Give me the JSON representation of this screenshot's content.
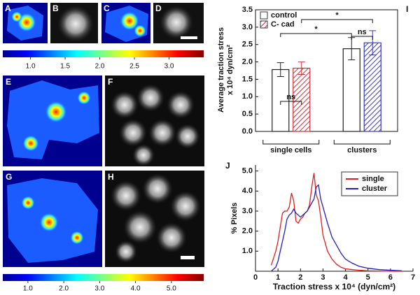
{
  "image_panels": {
    "labels": [
      "A",
      "B",
      "C",
      "D",
      "E",
      "F",
      "G",
      "H"
    ]
  },
  "colorbars": [
    {
      "lim": [
        0.6,
        3.5
      ],
      "ticks": [
        {
          "value": 1,
          "label": "1.0"
        },
        {
          "value": 1.5,
          "label": "1.5"
        },
        {
          "value": 2,
          "label": "2.0"
        },
        {
          "value": 2.5,
          "label": "2.5"
        },
        {
          "value": 3,
          "label": "3.0"
        }
      ]
    },
    {
      "lim": [
        0.3,
        5.9
      ],
      "ticks": [
        {
          "value": 1,
          "label": "1.0"
        },
        {
          "value": 2,
          "label": "2.0"
        },
        {
          "value": 3,
          "label": "3.0"
        },
        {
          "value": 4,
          "label": "4.0"
        },
        {
          "value": 5,
          "label": "5.0"
        }
      ]
    }
  ],
  "chart_data": [
    {
      "type": "bar",
      "panel_label": "I",
      "ylabel": [
        "Average traction stress",
        "x 10⁴ dyn/cm²"
      ],
      "categories": [
        "single cells",
        "clusters"
      ],
      "series": [
        {
          "name": "control",
          "colors": [
            "#222222",
            "#222222"
          ],
          "hatch": false,
          "values": [
            1.78,
            2.38
          ],
          "errors": [
            0.2,
            0.32
          ]
        },
        {
          "name": "C- cad",
          "colors": [
            "#d0303a",
            "#3a3ab8"
          ],
          "hatch": true,
          "values": [
            1.82,
            2.55
          ],
          "errors": [
            0.18,
            0.35
          ]
        }
      ],
      "annotations": [
        "ns",
        "ns",
        "*",
        "*"
      ],
      "ylim": [
        0,
        3.5
      ],
      "yticks": [
        {
          "value": 0,
          "label": "0.0"
        },
        {
          "value": 0.5,
          "label": "0.5"
        },
        {
          "value": 1,
          "label": "1.0"
        },
        {
          "value": 1.5,
          "label": "1.5"
        },
        {
          "value": 2,
          "label": "2.0"
        },
        {
          "value": 2.5,
          "label": "2.5"
        },
        {
          "value": 3,
          "label": "3.0"
        },
        {
          "value": 3.5,
          "label": "3.5"
        }
      ],
      "legend": "upper left"
    },
    {
      "type": "line",
      "panel_label": "J",
      "xlabel": "Traction stress x 10⁴ (dyn/cm²)",
      "ylabel": "% Pixels",
      "x": [
        0.7,
        0.9,
        1.0,
        1.1,
        1.2,
        1.3,
        1.4,
        1.5,
        1.6,
        1.7,
        1.8,
        1.9,
        2.0,
        2.1,
        2.2,
        2.3,
        2.4,
        2.5,
        2.6,
        2.7,
        2.8,
        2.9,
        3.0,
        3.2,
        3.4,
        3.6,
        3.8,
        4.0,
        4.3,
        4.6,
        5.0,
        5.5,
        6.0,
        6.5
      ],
      "series": [
        {
          "name": "single",
          "color": "#e02020",
          "values": [
            0.3,
            1.0,
            1.5,
            2.2,
            2.9,
            3.0,
            3.0,
            3.2,
            3.9,
            3.5,
            2.5,
            2.4,
            2.6,
            2.7,
            2.9,
            3.0,
            3.3,
            4.2,
            4.9,
            3.8,
            3.5,
            2.7,
            1.8,
            1.0,
            0.6,
            0.35,
            0.2,
            0.12,
            0.08,
            0.05,
            0.02,
            0.01,
            0,
            0
          ]
        },
        {
          "name": "cluster",
          "color": "#2020c0",
          "values": [
            0,
            0.2,
            0.5,
            1.0,
            1.5,
            2.0,
            2.6,
            2.8,
            2.9,
            3.1,
            2.9,
            2.8,
            2.7,
            2.8,
            2.9,
            3.0,
            3.2,
            3.4,
            3.6,
            4.2,
            4.3,
            3.6,
            3.2,
            2.4,
            1.7,
            1.3,
            0.9,
            0.6,
            0.4,
            0.25,
            0.15,
            0.08,
            0.05,
            0.02
          ]
        }
      ],
      "xlim": [
        0,
        7
      ],
      "xticks": [
        0,
        1,
        2,
        3,
        4,
        5,
        6,
        7
      ],
      "ylim": [
        0,
        5.3
      ],
      "yticks": [
        {
          "value": 1,
          "label": "1.0"
        },
        {
          "value": 2,
          "label": "2.0"
        },
        {
          "value": 3,
          "label": "3.0"
        },
        {
          "value": 4,
          "label": "4.0"
        },
        {
          "value": 5,
          "label": "5.0"
        }
      ],
      "legend": "upper right"
    }
  ]
}
